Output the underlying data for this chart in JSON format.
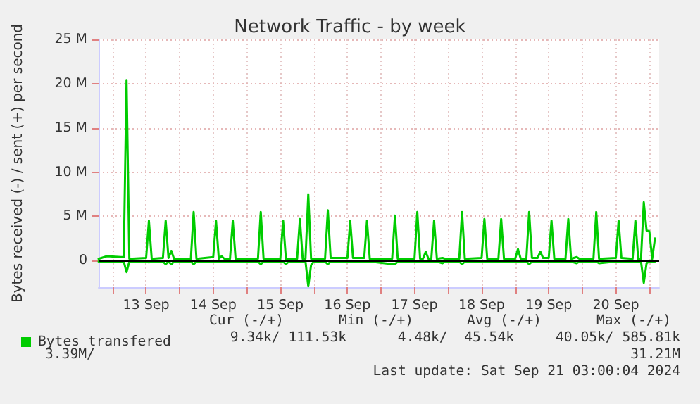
{
  "chart_data": {
    "type": "line",
    "title": "Network Traffic - by week",
    "ylabel": "Bytes received (-) / sent (+) per second",
    "x": [
      "2024-09-12T19:00",
      "2024-09-12T22:00",
      "2024-09-13T03:00",
      "2024-09-13T04:00",
      "2024-09-13T05:00",
      "2024-09-13T06:00",
      "2024-09-13T12:00",
      "2024-09-13T13:00",
      "2024-09-13T14:00",
      "2024-09-13T18:00",
      "2024-09-13T19:00",
      "2024-09-13T20:00",
      "2024-09-13T21:00",
      "2024-09-13T22:00",
      "2024-09-14T04:00",
      "2024-09-14T05:00",
      "2024-09-14T06:00",
      "2024-09-14T12:00",
      "2024-09-14T13:00",
      "2024-09-14T14:00",
      "2024-09-14T15:00",
      "2024-09-14T16:00",
      "2024-09-14T18:00",
      "2024-09-14T19:00",
      "2024-09-14T20:00",
      "2024-09-15T04:00",
      "2024-09-15T05:00",
      "2024-09-15T06:00",
      "2024-09-15T12:00",
      "2024-09-15T13:00",
      "2024-09-15T14:00",
      "2024-09-15T15:00",
      "2024-09-15T18:00",
      "2024-09-15T19:00",
      "2024-09-15T20:00",
      "2024-09-15T21:00",
      "2024-09-15T22:00",
      "2024-09-15T23:00",
      "2024-09-16T00:00",
      "2024-09-16T04:00",
      "2024-09-16T05:00",
      "2024-09-16T06:00",
      "2024-09-16T12:00",
      "2024-09-16T13:00",
      "2024-09-16T14:00",
      "2024-09-16T18:00",
      "2024-09-16T19:00",
      "2024-09-16T20:00",
      "2024-09-17T04:00",
      "2024-09-17T05:00",
      "2024-09-17T06:00",
      "2024-09-17T12:00",
      "2024-09-17T13:00",
      "2024-09-17T14:00",
      "2024-09-17T15:00",
      "2024-09-17T16:00",
      "2024-09-17T17:00",
      "2024-09-17T18:00",
      "2024-09-17T19:00",
      "2024-09-17T20:00",
      "2024-09-17T22:00",
      "2024-09-17T23:00",
      "2024-09-18T04:00",
      "2024-09-18T05:00",
      "2024-09-18T06:00",
      "2024-09-18T12:00",
      "2024-09-18T13:00",
      "2024-09-18T14:00",
      "2024-09-18T18:00",
      "2024-09-18T19:00",
      "2024-09-18T20:00",
      "2024-09-19T00:00",
      "2024-09-19T01:00",
      "2024-09-19T02:00",
      "2024-09-19T04:00",
      "2024-09-19T05:00",
      "2024-09-19T06:00",
      "2024-09-19T08:00",
      "2024-09-19T09:00",
      "2024-09-19T10:00",
      "2024-09-19T12:00",
      "2024-09-19T13:00",
      "2024-09-19T14:00",
      "2024-09-19T18:00",
      "2024-09-19T19:00",
      "2024-09-19T20:00",
      "2024-09-19T22:00",
      "2024-09-19T23:00",
      "2024-09-20T04:00",
      "2024-09-20T05:00",
      "2024-09-20T06:00",
      "2024-09-20T12:00",
      "2024-09-20T13:00",
      "2024-09-20T14:00",
      "2024-09-20T18:00",
      "2024-09-20T19:00",
      "2024-09-20T20:00",
      "2024-09-20T21:00",
      "2024-09-20T22:00",
      "2024-09-20T23:00",
      "2024-09-21T00:00",
      "2024-09-21T01:00",
      "2024-09-21T02:00"
    ],
    "series": [
      {
        "name": "Bytes transfered",
        "color": "#00cc00",
        "values": [
          0.2,
          0.5,
          0.4,
          0.4,
          20.4,
          0.2,
          0.3,
          4.5,
          0.2,
          0.3,
          4.5,
          0.3,
          1.1,
          0.2,
          0.2,
          5.5,
          0.2,
          0.4,
          4.5,
          0.2,
          0.5,
          0.2,
          0.2,
          4.5,
          0.2,
          0.2,
          5.5,
          0.2,
          0.2,
          4.5,
          0.2,
          0.2,
          0.2,
          4.7,
          0.2,
          0.2,
          7.5,
          0.2,
          0.2,
          0.2,
          5.7,
          0.3,
          0.3,
          4.5,
          0.3,
          0.3,
          4.5,
          0.2,
          0.2,
          5.1,
          0.2,
          0.2,
          5.5,
          0.2,
          0.2,
          1.0,
          0.2,
          0.2,
          4.5,
          0.2,
          0.3,
          0.2,
          0.2,
          5.5,
          0.2,
          0.3,
          4.7,
          0.2,
          0.2,
          4.7,
          0.2,
          0.2,
          1.3,
          0.2,
          0.2,
          5.5,
          0.3,
          0.3,
          1.0,
          0.3,
          0.3,
          4.5,
          0.2,
          0.2,
          4.7,
          0.2,
          0.4,
          0.2,
          0.2,
          5.5,
          0.2,
          0.3,
          4.5,
          0.3,
          0.2,
          4.5,
          0.2,
          0.2,
          6.6,
          3.4,
          3.3,
          0.2,
          2.5
        ]
      },
      {
        "color": "#00cc00",
        "values": [
          -0.1,
          -0.1,
          -0.1,
          -0.1,
          -1.3,
          -0.1,
          -0.1,
          -0.2,
          -0.1,
          -0.1,
          -0.4,
          -0.1,
          -0.4,
          -0.1,
          -0.1,
          -0.4,
          -0.1,
          -0.1,
          -0.1,
          -0.1,
          -0.1,
          -0.1,
          -0.1,
          -0.1,
          -0.1,
          -0.1,
          -0.4,
          -0.1,
          -0.1,
          -0.1,
          -0.4,
          -0.1,
          -0.1,
          -0.1,
          -0.1,
          -0.1,
          -2.9,
          -0.5,
          -0.1,
          -0.1,
          -0.4,
          -0.1,
          -0.1,
          -0.1,
          -0.1,
          -0.1,
          -0.1,
          -0.1,
          -0.4,
          -0.4,
          -0.1,
          -0.1,
          -0.1,
          -0.1,
          -0.1,
          -0.1,
          -0.1,
          -0.1,
          -0.1,
          -0.1,
          -0.3,
          -0.1,
          -0.1,
          -0.4,
          -0.1,
          -0.1,
          -0.1,
          -0.1,
          -0.1,
          -0.1,
          -0.1,
          -0.1,
          -0.1,
          -0.1,
          -0.1,
          -0.4,
          -0.1,
          -0.1,
          -0.1,
          -0.1,
          -0.1,
          -0.1,
          -0.1,
          -0.1,
          -0.1,
          -0.1,
          -0.3,
          -0.1,
          -0.1,
          -0.1,
          -0.3,
          -0.1,
          -0.1,
          -0.1,
          -0.1,
          -0.1,
          -0.1,
          -0.1,
          -2.5,
          -0.3,
          -0.1,
          -0.1,
          -0.1
        ]
      }
    ],
    "xlim": [
      "2024-09-12T19:00",
      "2024-09-21T03:30"
    ],
    "xticks": [
      {
        "value": "2024-09-13T00:00",
        "label": null
      },
      {
        "value": "2024-09-13T12:00",
        "label": "13 Sep"
      },
      {
        "value": "2024-09-14T00:00",
        "label": null
      },
      {
        "value": "2024-09-14T12:00",
        "label": "14 Sep"
      },
      {
        "value": "2024-09-15T00:00",
        "label": null
      },
      {
        "value": "2024-09-15T12:00",
        "label": "15 Sep"
      },
      {
        "value": "2024-09-16T00:00",
        "label": null
      },
      {
        "value": "2024-09-16T12:00",
        "label": "16 Sep"
      },
      {
        "value": "2024-09-17T00:00",
        "label": null
      },
      {
        "value": "2024-09-17T12:00",
        "label": "17 Sep"
      },
      {
        "value": "2024-09-18T00:00",
        "label": null
      },
      {
        "value": "2024-09-18T12:00",
        "label": "18 Sep"
      },
      {
        "value": "2024-09-19T00:00",
        "label": null
      },
      {
        "value": "2024-09-19T12:00",
        "label": "19 Sep"
      },
      {
        "value": "2024-09-20T00:00",
        "label": null
      },
      {
        "value": "2024-09-20T12:00",
        "label": "20 Sep"
      },
      {
        "value": "2024-09-21T00:00",
        "label": null
      }
    ],
    "ylim": [
      -3,
      25
    ],
    "yticks": [
      0,
      {
        "value": 5,
        "label": "5 M"
      },
      {
        "value": 10,
        "label": "10 M"
      },
      {
        "value": 15,
        "label": "15 M"
      },
      {
        "value": 20,
        "label": "20 M"
      },
      {
        "value": 25,
        "label": "25 M"
      }
    ],
    "ref_lines": [
      {
        "axis": "y",
        "value": 0,
        "color": "#000000"
      }
    ],
    "grid": true,
    "legend": "bottom left",
    "marker": "none",
    "line_style": "solid",
    "annotations": [
      "Cur (-/+)",
      "Min (-/+)",
      "Avg (-/+)",
      "Max (-/+)",
      "9.34k/ 111.53k",
      "4.48k/  45.54k",
      "40.05k/ 585.81k",
      "3.39M/",
      "31.21M",
      "Last update: Sat Sep 21 03:00:04 2024"
    ]
  }
}
